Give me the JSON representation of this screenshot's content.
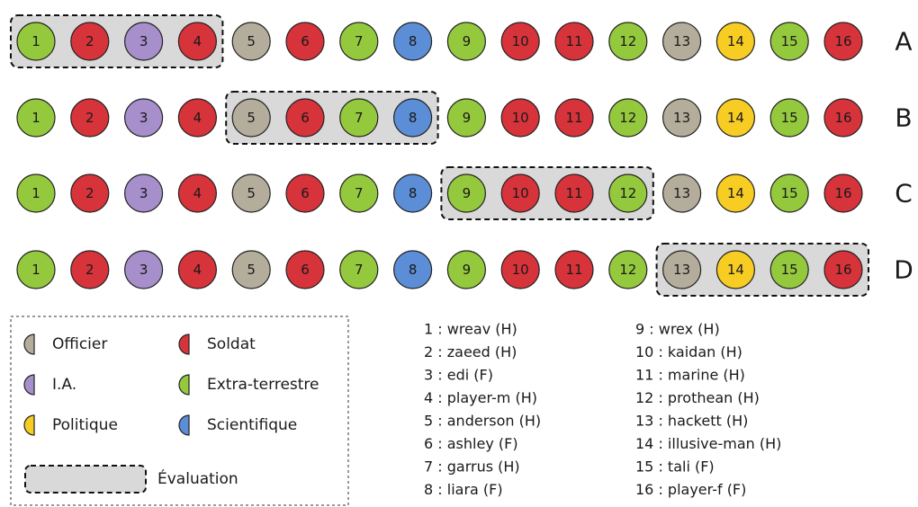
{
  "legend": {
    "categories": [
      {
        "name": "Officier",
        "color": "#b5ad9c"
      },
      {
        "name": "Soldat",
        "color": "#d7333b"
      },
      {
        "name": "I.A.",
        "color": "#a68fcb"
      },
      {
        "name": "Extra-terrestre",
        "color": "#95c93d"
      },
      {
        "name": "Politique",
        "color": "#f7cd24"
      },
      {
        "name": "Scientifique",
        "color": "#5b8ed6"
      }
    ],
    "evaluation": "Évaluation"
  },
  "circles": [
    {
      "label": "1",
      "category": 3
    },
    {
      "label": "2",
      "category": 1
    },
    {
      "label": "3",
      "category": 2
    },
    {
      "label": "4",
      "category": 1
    },
    {
      "label": "5",
      "category": 0
    },
    {
      "label": "6",
      "category": 1
    },
    {
      "label": "7",
      "category": 3
    },
    {
      "label": "8",
      "category": 5
    },
    {
      "label": "9",
      "category": 3
    },
    {
      "label": "10",
      "category": 1
    },
    {
      "label": "11",
      "category": 1
    },
    {
      "label": "12",
      "category": 3
    },
    {
      "label": "13",
      "category": 0
    },
    {
      "label": "14",
      "category": 4
    },
    {
      "label": "15",
      "category": 3
    },
    {
      "label": "16",
      "category": 1
    }
  ],
  "rows": [
    {
      "label": "A",
      "evaluated": [
        0,
        3
      ]
    },
    {
      "label": "B",
      "evaluated": [
        4,
        7
      ]
    },
    {
      "label": "C",
      "evaluated": [
        8,
        11
      ]
    },
    {
      "label": "D",
      "evaluated": [
        12,
        15
      ]
    }
  ],
  "names": [
    "1 : wreav (H)",
    "2 : zaeed (H)",
    "3 : edi (F)",
    "4 : player-m (H)",
    "5 : anderson (H)",
    "6 : ashley (F)",
    "7 : garrus (H)",
    "8 : liara (F)",
    "9 : wrex (H)",
    "10 : kaidan (H)",
    "11 : marine (H)",
    "12 : prothean (H)",
    "13 : hackett (H)",
    "14 : illusive-man (H)",
    "15 : tali (F)",
    "16 : player-f (F)"
  ]
}
